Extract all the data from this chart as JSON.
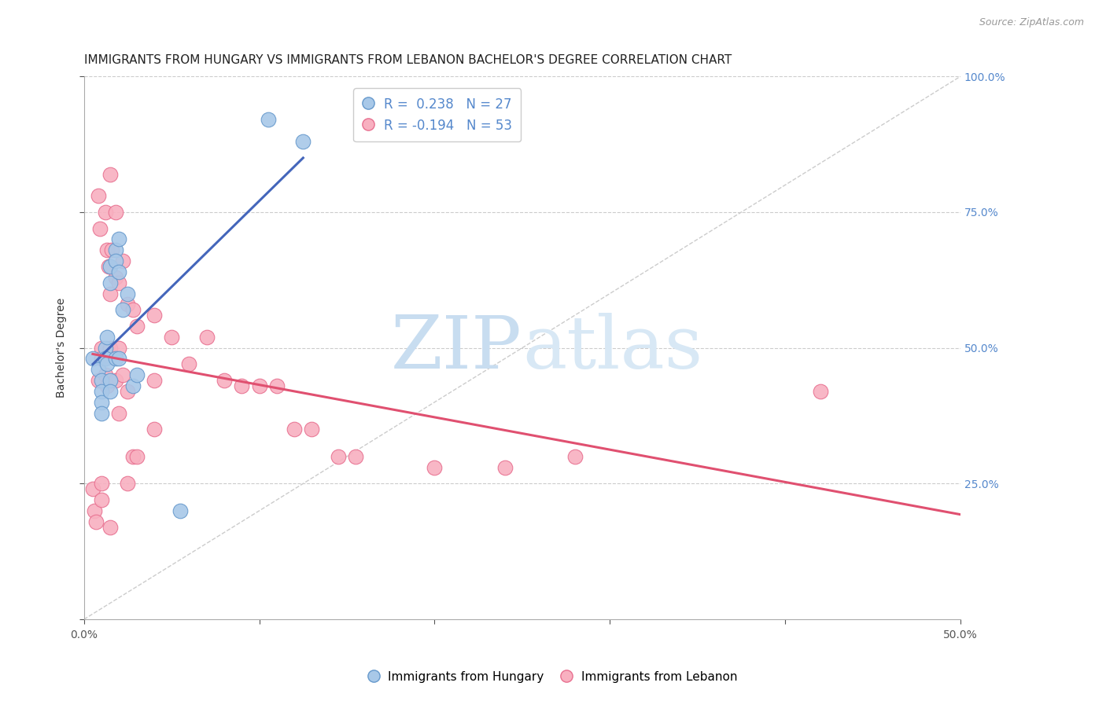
{
  "title": "IMMIGRANTS FROM HUNGARY VS IMMIGRANTS FROM LEBANON BACHELOR'S DEGREE CORRELATION CHART",
  "source": "Source: ZipAtlas.com",
  "ylabel": "Bachelor's Degree",
  "xlim": [
    0.0,
    0.5
  ],
  "ylim": [
    0.0,
    1.0
  ],
  "ytick_positions_right": [
    1.0,
    0.75,
    0.5,
    0.25
  ],
  "ytick_labels_right": [
    "100.0%",
    "75.0%",
    "50.0%",
    "25.0%"
  ],
  "hungary_color": "#a8c8e8",
  "lebanon_color": "#f8b0c0",
  "hungary_edge": "#6699cc",
  "lebanon_edge": "#e87090",
  "trend_hungary_color": "#4466bb",
  "trend_lebanon_color": "#e05070",
  "diagonal_color": "#cccccc",
  "legend_R_hungary": "R =  0.238",
  "legend_N_hungary": "N = 27",
  "legend_R_lebanon": "R = -0.194",
  "legend_N_lebanon": "N = 53",
  "legend_color_R": "#5588cc",
  "legend_color_N": "#5588cc",
  "legend_label_hungary": "Immigrants from Hungary",
  "legend_label_lebanon": "Immigrants from Lebanon",
  "hungary_x": [
    0.005,
    0.008,
    0.01,
    0.01,
    0.01,
    0.01,
    0.012,
    0.012,
    0.013,
    0.013,
    0.015,
    0.015,
    0.015,
    0.015,
    0.018,
    0.018,
    0.018,
    0.02,
    0.02,
    0.02,
    0.022,
    0.025,
    0.028,
    0.03,
    0.055,
    0.105,
    0.125
  ],
  "hungary_y": [
    0.48,
    0.46,
    0.44,
    0.42,
    0.4,
    0.38,
    0.5,
    0.48,
    0.52,
    0.47,
    0.65,
    0.62,
    0.44,
    0.42,
    0.68,
    0.66,
    0.48,
    0.7,
    0.64,
    0.48,
    0.57,
    0.6,
    0.43,
    0.45,
    0.2,
    0.92,
    0.88
  ],
  "lebanon_x": [
    0.005,
    0.006,
    0.007,
    0.008,
    0.008,
    0.009,
    0.01,
    0.01,
    0.01,
    0.01,
    0.012,
    0.012,
    0.013,
    0.013,
    0.014,
    0.015,
    0.015,
    0.015,
    0.015,
    0.016,
    0.018,
    0.018,
    0.018,
    0.02,
    0.02,
    0.02,
    0.022,
    0.022,
    0.025,
    0.025,
    0.025,
    0.028,
    0.028,
    0.03,
    0.03,
    0.04,
    0.04,
    0.04,
    0.05,
    0.06,
    0.07,
    0.08,
    0.09,
    0.1,
    0.11,
    0.12,
    0.13,
    0.145,
    0.155,
    0.2,
    0.24,
    0.28,
    0.42
  ],
  "lebanon_y": [
    0.24,
    0.2,
    0.18,
    0.78,
    0.44,
    0.72,
    0.5,
    0.48,
    0.25,
    0.22,
    0.75,
    0.45,
    0.68,
    0.43,
    0.65,
    0.82,
    0.6,
    0.5,
    0.17,
    0.68,
    0.75,
    0.63,
    0.44,
    0.62,
    0.5,
    0.38,
    0.66,
    0.45,
    0.58,
    0.42,
    0.25,
    0.57,
    0.3,
    0.54,
    0.3,
    0.56,
    0.44,
    0.35,
    0.52,
    0.47,
    0.52,
    0.44,
    0.43,
    0.43,
    0.43,
    0.35,
    0.35,
    0.3,
    0.3,
    0.28,
    0.28,
    0.3,
    0.42
  ],
  "watermark_zip": "ZIP",
  "watermark_atlas": "atlas",
  "background_color": "#ffffff",
  "grid_color": "#cccccc",
  "title_fontsize": 11,
  "axis_label_fontsize": 10,
  "tick_fontsize": 10,
  "legend_fontsize": 12
}
